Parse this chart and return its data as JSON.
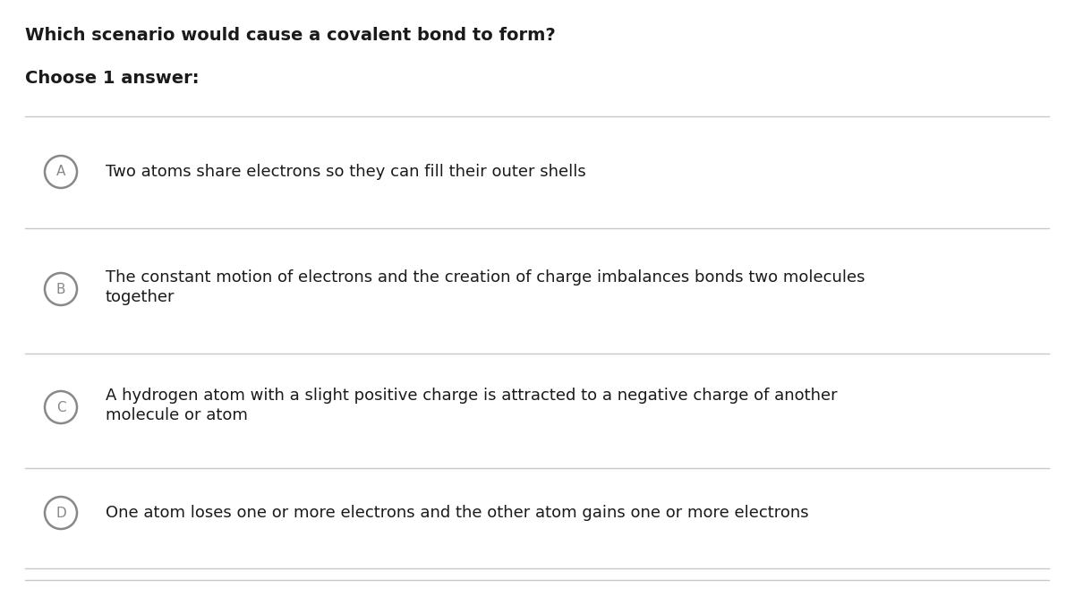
{
  "title": "Which scenario would cause a covalent bond to form?",
  "subtitle": "Choose 1 answer:",
  "background_color": "#ffffff",
  "title_fontsize": 14,
  "subtitle_fontsize": 14,
  "text_color": "#1a1a1a",
  "circle_color": "#888888",
  "line_color": "#c8c8c8",
  "option_text_fontsize": 13,
  "options": [
    {
      "label": "A",
      "lines": [
        "Two atoms share electrons so they can fill their outer shells"
      ]
    },
    {
      "label": "B",
      "lines": [
        "The constant motion of electrons and the creation of charge imbalances bonds two molecules",
        "together"
      ]
    },
    {
      "label": "C",
      "lines": [
        "A hydrogen atom with a slight positive charge is attracted to a negative charge of another",
        "molecule or atom"
      ]
    },
    {
      "label": "D",
      "lines": [
        "One atom loses one or more electrons and the other atom gains one or more electrons"
      ]
    }
  ]
}
